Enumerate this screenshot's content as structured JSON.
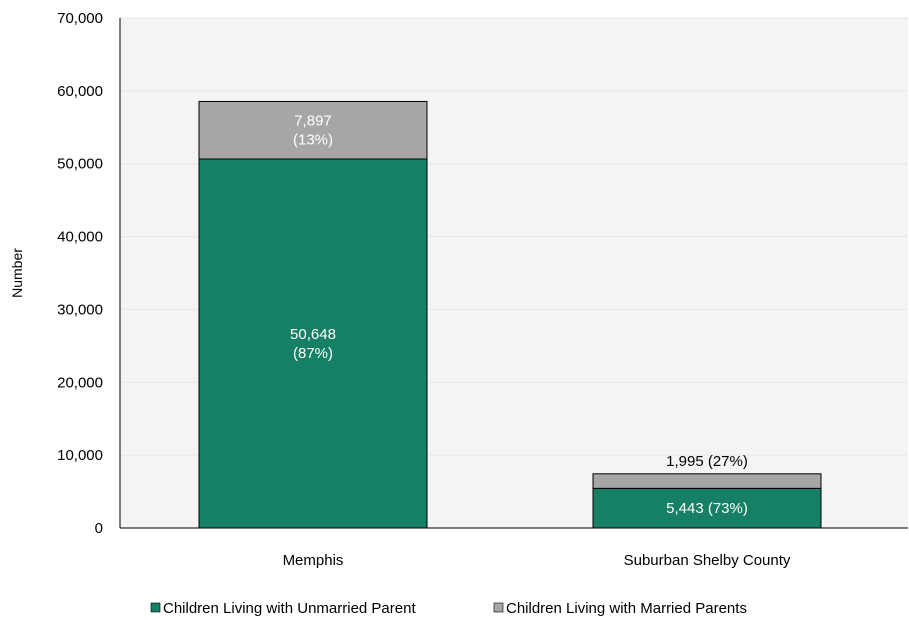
{
  "chart_data": {
    "type": "bar",
    "stacked": true,
    "categories": [
      "Memphis",
      "Suburban Shelby County"
    ],
    "series": [
      {
        "name": "Children Living with Unmarried Parent",
        "color": "#168065",
        "values": [
          50648,
          5443
        ],
        "labels": [
          "50,648\n(87%)",
          "5,443 (73%)"
        ]
      },
      {
        "name": "Children Living with Married Parents",
        "color": "#a6a6a6",
        "values": [
          7897,
          1995
        ],
        "labels": [
          "7,897\n(13%)",
          "1,995 (27%)"
        ]
      }
    ],
    "ylabel": "Number",
    "ylim": [
      0,
      70000
    ],
    "yticks": [
      0,
      10000,
      20000,
      30000,
      40000,
      50000,
      60000,
      70000
    ],
    "ytick_labels": [
      "0",
      "10,000",
      "20,000",
      "30,000",
      "40,000",
      "50,000",
      "60,000",
      "70,000"
    ],
    "plot_background": "#f3f4f3",
    "grid": true,
    "legend": "bottom"
  }
}
